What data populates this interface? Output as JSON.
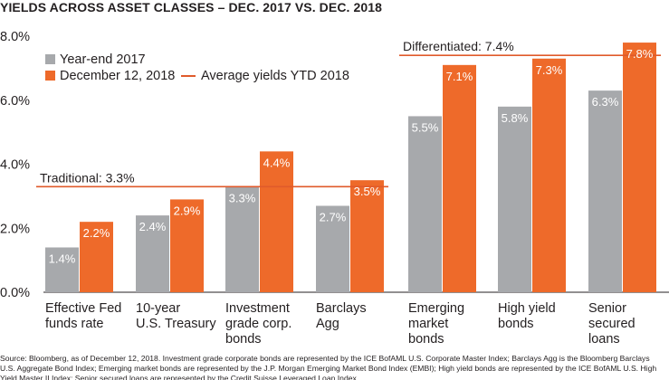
{
  "title": "YIELDS ACROSS ASSET CLASSES – DEC. 2017 VS. DEC. 2018",
  "source": "Source: Bloomberg, as of December 12, 2018. Investment grade corporate bonds are represented by the ICE BofAML U.S. Corporate Master Index; Barclays Agg is the Bloomberg Barclays U.S. Aggregate Bond Index; Emerging market bonds are represented by the J.P. Morgan Emerging Market Bond Index (EMBI); High yield bonds are represented by the ICE BofAML U.S. High Yield Master II Index; Senior secured loans are represented by the Credit Suisse Leveraged Loan Index.",
  "colors": {
    "year_end_2017": "#a7a9ac",
    "dec_2018": "#ee6a2a",
    "average_line": "#e05a2b",
    "axis": "#231f20"
  },
  "chart_data": {
    "type": "bar",
    "categories": [
      [
        "Effective Fed",
        "funds rate"
      ],
      [
        "10-year",
        "U.S. Treasury"
      ],
      [
        "Investment",
        "grade corp.",
        "bonds"
      ],
      [
        "Barclays",
        "Agg"
      ],
      [
        "Emerging",
        "market",
        "bonds"
      ],
      [
        "High yield",
        "bonds"
      ],
      [
        "Senior",
        "secured",
        "loans"
      ]
    ],
    "series": [
      {
        "name": "Year-end 2017",
        "values": [
          1.4,
          2.4,
          3.3,
          2.7,
          5.5,
          5.8,
          6.3
        ],
        "labels": [
          "1.4%",
          "2.4%",
          "3.3%",
          "2.7%",
          "5.5%",
          "5.8%",
          "6.3%"
        ]
      },
      {
        "name": "December 12, 2018",
        "values": [
          2.2,
          2.9,
          4.4,
          3.5,
          7.1,
          7.3,
          7.8
        ],
        "labels": [
          "2.2%",
          "2.9%",
          "4.4%",
          "3.5%",
          "7.1%",
          "7.3%",
          "7.8%"
        ]
      }
    ],
    "average_series_name": "Average yields YTD 2018",
    "averages": [
      {
        "label": "Traditional: 3.3%",
        "value": 3.3,
        "categories": [
          0,
          3
        ]
      },
      {
        "label": "Differentiated: 7.4%",
        "value": 7.4,
        "categories": [
          4,
          6
        ]
      }
    ],
    "yticks": [
      0,
      2,
      4,
      6,
      8
    ],
    "ytick_labels": [
      "0.0%",
      "2.0%",
      "4.0%",
      "6.0%",
      "8.0%"
    ],
    "ylim": [
      0,
      8
    ],
    "grid": false,
    "legend": "top-left"
  }
}
